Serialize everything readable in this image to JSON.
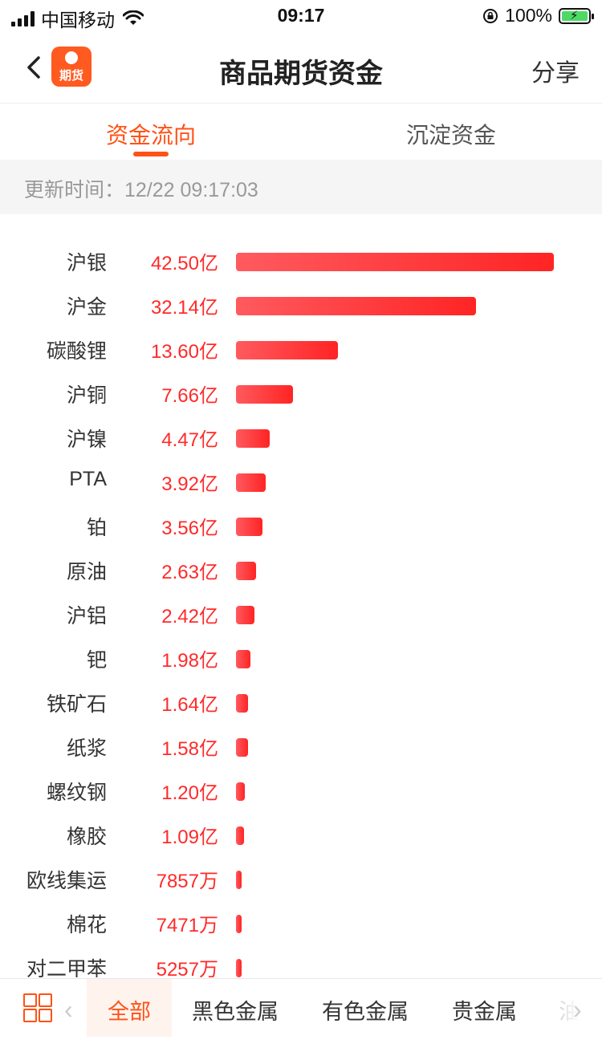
{
  "status": {
    "carrier": "中国移动",
    "time": "09:17",
    "battery": "100%"
  },
  "nav": {
    "logo_text": "期货",
    "title": "商品期货资金",
    "share": "分享"
  },
  "tabs": [
    {
      "label": "资金流向",
      "active": true
    },
    {
      "label": "沉淀资金",
      "active": false
    }
  ],
  "update_time": "更新时间：12/22 09:17:03",
  "chart_data": {
    "type": "bar",
    "orientation": "horizontal",
    "unit_note": "亿 / 万",
    "categories": [
      "沪银",
      "沪金",
      "碳酸锂",
      "沪铜",
      "沪镍",
      "PTA",
      "铂",
      "原油",
      "沪铝",
      "钯",
      "铁矿石",
      "纸浆",
      "螺纹钢",
      "橡胶",
      "欧线集运",
      "棉花",
      "对二甲苯"
    ],
    "values_yi": [
      42.5,
      32.14,
      13.6,
      7.66,
      4.47,
      3.92,
      3.56,
      2.63,
      2.42,
      1.98,
      1.64,
      1.58,
      1.2,
      1.09,
      0.7857,
      0.7471,
      0.5257
    ],
    "labels": [
      "42.50亿",
      "32.14亿",
      "13.60亿",
      "7.66亿",
      "4.47亿",
      "3.92亿",
      "3.56亿",
      "2.63亿",
      "2.42亿",
      "1.98亿",
      "1.64亿",
      "1.58亿",
      "1.20亿",
      "1.09亿",
      "7857万",
      "7471万",
      "5257万"
    ],
    "bar_color": "#ff2a2a",
    "grid": false
  },
  "bottom": {
    "categories": [
      {
        "label": "全部",
        "active": true
      },
      {
        "label": "黑色金属",
        "active": false
      },
      {
        "label": "有色金属",
        "active": false
      },
      {
        "label": "贵金属",
        "active": false
      },
      {
        "label": "油",
        "active": false
      }
    ]
  }
}
